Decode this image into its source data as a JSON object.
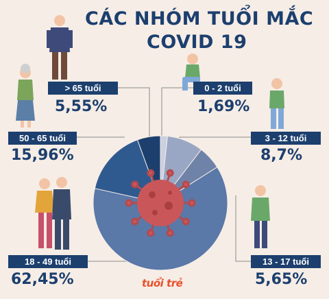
{
  "title": {
    "line1": "CÁC NHÓM TUỔI MẮC",
    "line2": "COVID 19"
  },
  "chart_data": {
    "type": "pie",
    "title": "CÁC NHÓM TUỔI MẮC COVID 19",
    "slices": [
      {
        "label": "0 - 2 tuổi",
        "value": 1.69,
        "display": "1,69%",
        "color": "#c9d0e0"
      },
      {
        "label": "3 - 12 tuổi",
        "value": 8.7,
        "display": "8,7%",
        "color": "#9aa7c4"
      },
      {
        "label": "13 - 17 tuổi",
        "value": 5.65,
        "display": "5,65%",
        "color": "#6f82a8"
      },
      {
        "label": "18 - 49 tuổi",
        "value": 62.45,
        "display": "62,45%",
        "color": "#5a78a8"
      },
      {
        "label": "50 - 65 tuổi",
        "value": 15.96,
        "display": "15,96%",
        "color": "#2f5a90"
      },
      {
        "label": "> 65 tuổi",
        "value": 5.55,
        "display": "5,55%",
        "color": "#1c3f6e"
      }
    ]
  },
  "brand": "tuổi trẻ",
  "colors": {
    "navy": "#1c3f6e",
    "background": "#f6ede6",
    "virus": "#c9575a"
  }
}
